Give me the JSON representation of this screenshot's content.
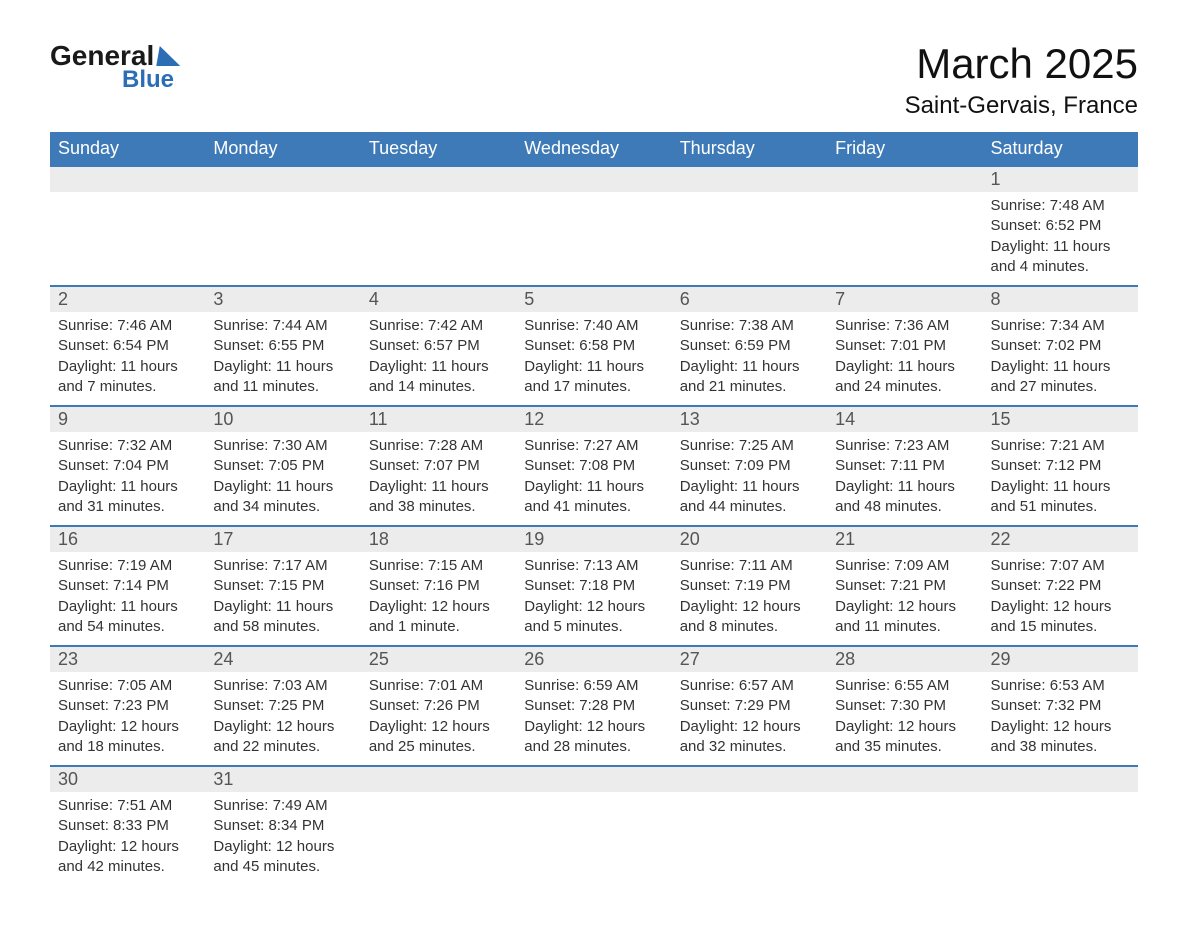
{
  "logo": {
    "line1": "General",
    "line2": "Blue"
  },
  "title": "March 2025",
  "location": "Saint-Gervais, France",
  "colors": {
    "header_bg": "#3e7ab8",
    "header_text": "#ffffff",
    "daynum_bg": "#ececec",
    "row_border": "#3e7ab8",
    "body_text": "#333333",
    "logo_accent": "#2c6eb5"
  },
  "weekdays": [
    "Sunday",
    "Monday",
    "Tuesday",
    "Wednesday",
    "Thursday",
    "Friday",
    "Saturday"
  ],
  "weeks": [
    [
      null,
      null,
      null,
      null,
      null,
      null,
      {
        "n": "1",
        "sr": "7:48 AM",
        "ss": "6:52 PM",
        "dl": "11 hours and 4 minutes."
      }
    ],
    [
      {
        "n": "2",
        "sr": "7:46 AM",
        "ss": "6:54 PM",
        "dl": "11 hours and 7 minutes."
      },
      {
        "n": "3",
        "sr": "7:44 AM",
        "ss": "6:55 PM",
        "dl": "11 hours and 11 minutes."
      },
      {
        "n": "4",
        "sr": "7:42 AM",
        "ss": "6:57 PM",
        "dl": "11 hours and 14 minutes."
      },
      {
        "n": "5",
        "sr": "7:40 AM",
        "ss": "6:58 PM",
        "dl": "11 hours and 17 minutes."
      },
      {
        "n": "6",
        "sr": "7:38 AM",
        "ss": "6:59 PM",
        "dl": "11 hours and 21 minutes."
      },
      {
        "n": "7",
        "sr": "7:36 AM",
        "ss": "7:01 PM",
        "dl": "11 hours and 24 minutes."
      },
      {
        "n": "8",
        "sr": "7:34 AM",
        "ss": "7:02 PM",
        "dl": "11 hours and 27 minutes."
      }
    ],
    [
      {
        "n": "9",
        "sr": "7:32 AM",
        "ss": "7:04 PM",
        "dl": "11 hours and 31 minutes."
      },
      {
        "n": "10",
        "sr": "7:30 AM",
        "ss": "7:05 PM",
        "dl": "11 hours and 34 minutes."
      },
      {
        "n": "11",
        "sr": "7:28 AM",
        "ss": "7:07 PM",
        "dl": "11 hours and 38 minutes."
      },
      {
        "n": "12",
        "sr": "7:27 AM",
        "ss": "7:08 PM",
        "dl": "11 hours and 41 minutes."
      },
      {
        "n": "13",
        "sr": "7:25 AM",
        "ss": "7:09 PM",
        "dl": "11 hours and 44 minutes."
      },
      {
        "n": "14",
        "sr": "7:23 AM",
        "ss": "7:11 PM",
        "dl": "11 hours and 48 minutes."
      },
      {
        "n": "15",
        "sr": "7:21 AM",
        "ss": "7:12 PM",
        "dl": "11 hours and 51 minutes."
      }
    ],
    [
      {
        "n": "16",
        "sr": "7:19 AM",
        "ss": "7:14 PM",
        "dl": "11 hours and 54 minutes."
      },
      {
        "n": "17",
        "sr": "7:17 AM",
        "ss": "7:15 PM",
        "dl": "11 hours and 58 minutes."
      },
      {
        "n": "18",
        "sr": "7:15 AM",
        "ss": "7:16 PM",
        "dl": "12 hours and 1 minute."
      },
      {
        "n": "19",
        "sr": "7:13 AM",
        "ss": "7:18 PM",
        "dl": "12 hours and 5 minutes."
      },
      {
        "n": "20",
        "sr": "7:11 AM",
        "ss": "7:19 PM",
        "dl": "12 hours and 8 minutes."
      },
      {
        "n": "21",
        "sr": "7:09 AM",
        "ss": "7:21 PM",
        "dl": "12 hours and 11 minutes."
      },
      {
        "n": "22",
        "sr": "7:07 AM",
        "ss": "7:22 PM",
        "dl": "12 hours and 15 minutes."
      }
    ],
    [
      {
        "n": "23",
        "sr": "7:05 AM",
        "ss": "7:23 PM",
        "dl": "12 hours and 18 minutes."
      },
      {
        "n": "24",
        "sr": "7:03 AM",
        "ss": "7:25 PM",
        "dl": "12 hours and 22 minutes."
      },
      {
        "n": "25",
        "sr": "7:01 AM",
        "ss": "7:26 PM",
        "dl": "12 hours and 25 minutes."
      },
      {
        "n": "26",
        "sr": "6:59 AM",
        "ss": "7:28 PM",
        "dl": "12 hours and 28 minutes."
      },
      {
        "n": "27",
        "sr": "6:57 AM",
        "ss": "7:29 PM",
        "dl": "12 hours and 32 minutes."
      },
      {
        "n": "28",
        "sr": "6:55 AM",
        "ss": "7:30 PM",
        "dl": "12 hours and 35 minutes."
      },
      {
        "n": "29",
        "sr": "6:53 AM",
        "ss": "7:32 PM",
        "dl": "12 hours and 38 minutes."
      }
    ],
    [
      {
        "n": "30",
        "sr": "7:51 AM",
        "ss": "8:33 PM",
        "dl": "12 hours and 42 minutes."
      },
      {
        "n": "31",
        "sr": "7:49 AM",
        "ss": "8:34 PM",
        "dl": "12 hours and 45 minutes."
      },
      null,
      null,
      null,
      null,
      null
    ]
  ]
}
